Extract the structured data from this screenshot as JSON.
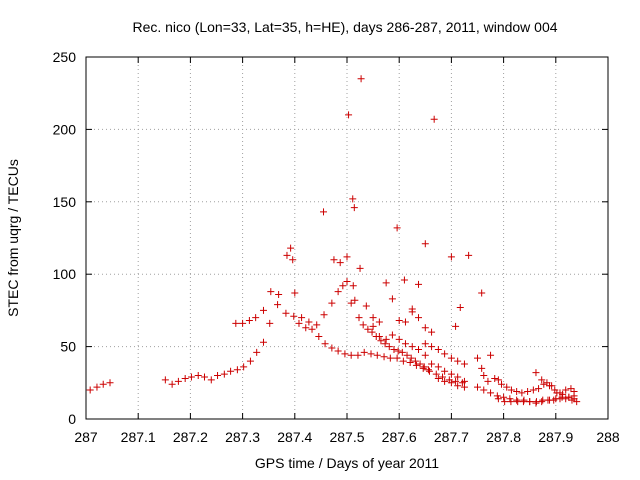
{
  "chart_data": {
    "type": "scatter",
    "title": "Rec. nico (Lon=33, Lat=35, h=HE), days 286-287, 2011, window 004",
    "xlabel": "GPS time / Days of year 2011",
    "ylabel": "STEC from uqrg / TECUs",
    "xlim": [
      287,
      288
    ],
    "ylim": [
      0,
      250
    ],
    "x_ticks": [
      287,
      287.1,
      287.2,
      287.3,
      287.4,
      287.5,
      287.6,
      287.7,
      287.8,
      287.9,
      288
    ],
    "x_tick_labels": [
      "287",
      "287.1",
      "287.2",
      "287.3",
      "287.4",
      "287.5",
      "287.6",
      "287.7",
      "287.8",
      "287.9",
      "288"
    ],
    "y_ticks": [
      0,
      50,
      100,
      150,
      200,
      250
    ],
    "y_tick_labels": [
      "0",
      "50",
      "100",
      "150",
      "200",
      "250"
    ],
    "grid": true,
    "marker": "+",
    "color": "#cc0000",
    "series": [
      {
        "name": "STEC",
        "points": [
          [
            287.008,
            20
          ],
          [
            287.021,
            22
          ],
          [
            287.033,
            24
          ],
          [
            287.046,
            25
          ],
          [
            287.152,
            27
          ],
          [
            287.165,
            24
          ],
          [
            287.177,
            26
          ],
          [
            287.19,
            28
          ],
          [
            287.202,
            29
          ],
          [
            287.215,
            30
          ],
          [
            287.227,
            29
          ],
          [
            287.24,
            27
          ],
          [
            287.252,
            30
          ],
          [
            287.265,
            31
          ],
          [
            287.277,
            33
          ],
          [
            287.29,
            34
          ],
          [
            287.302,
            36
          ],
          [
            287.315,
            40
          ],
          [
            287.327,
            46
          ],
          [
            287.34,
            53
          ],
          [
            287.287,
            66
          ],
          [
            287.3,
            66
          ],
          [
            287.313,
            68
          ],
          [
            287.325,
            70
          ],
          [
            287.34,
            75
          ],
          [
            287.354,
            88
          ],
          [
            287.369,
            86
          ],
          [
            287.385,
            113
          ],
          [
            287.392,
            118
          ],
          [
            287.396,
            110
          ],
          [
            287.4,
            87
          ],
          [
            287.408,
            66
          ],
          [
            287.421,
            63
          ],
          [
            287.433,
            62
          ],
          [
            287.446,
            57
          ],
          [
            287.458,
            52
          ],
          [
            287.471,
            49
          ],
          [
            287.483,
            47
          ],
          [
            287.496,
            45
          ],
          [
            287.508,
            44
          ],
          [
            287.521,
            44
          ],
          [
            287.533,
            46
          ],
          [
            287.546,
            45
          ],
          [
            287.558,
            44
          ],
          [
            287.571,
            43
          ],
          [
            287.583,
            42
          ],
          [
            287.596,
            42
          ],
          [
            287.608,
            40
          ],
          [
            287.621,
            39
          ],
          [
            287.633,
            37
          ],
          [
            287.646,
            35
          ],
          [
            287.658,
            33
          ],
          [
            287.671,
            31
          ],
          [
            287.683,
            29
          ],
          [
            287.696,
            27
          ],
          [
            287.708,
            26
          ],
          [
            287.721,
            25
          ],
          [
            287.352,
            66
          ],
          [
            287.367,
            79
          ],
          [
            287.383,
            73
          ],
          [
            287.398,
            71
          ],
          [
            287.413,
            70
          ],
          [
            287.427,
            67
          ],
          [
            287.442,
            65
          ],
          [
            287.456,
            72
          ],
          [
            287.471,
            80
          ],
          [
            287.483,
            88
          ],
          [
            287.492,
            92
          ],
          [
            287.5,
            95
          ],
          [
            287.508,
            80
          ],
          [
            287.515,
            82
          ],
          [
            287.523,
            70
          ],
          [
            287.531,
            65
          ],
          [
            287.54,
            62
          ],
          [
            287.548,
            60
          ],
          [
            287.556,
            57
          ],
          [
            287.565,
            54
          ],
          [
            287.573,
            52
          ],
          [
            287.581,
            50
          ],
          [
            287.59,
            48
          ],
          [
            287.598,
            47
          ],
          [
            287.606,
            46
          ],
          [
            287.615,
            44
          ],
          [
            287.623,
            42
          ],
          [
            287.631,
            40
          ],
          [
            287.64,
            38
          ],
          [
            287.648,
            36
          ],
          [
            287.656,
            34
          ],
          [
            287.487,
            108
          ],
          [
            287.5,
            112
          ],
          [
            287.512,
            92
          ],
          [
            287.525,
            104
          ],
          [
            287.537,
            78
          ],
          [
            287.55,
            64
          ],
          [
            287.562,
            57
          ],
          [
            287.575,
            55
          ],
          [
            287.587,
            58
          ],
          [
            287.6,
            55
          ],
          [
            287.612,
            52
          ],
          [
            287.625,
            50
          ],
          [
            287.637,
            48
          ],
          [
            287.65,
            44
          ],
          [
            287.662,
            38
          ],
          [
            287.675,
            36
          ],
          [
            287.687,
            33
          ],
          [
            287.7,
            31
          ],
          [
            287.712,
            29
          ],
          [
            287.725,
            26
          ],
          [
            287.455,
            143
          ],
          [
            287.475,
            110
          ],
          [
            287.503,
            210
          ],
          [
            287.511,
            152
          ],
          [
            287.514,
            146
          ],
          [
            287.527,
            235
          ],
          [
            287.596,
            132
          ],
          [
            287.61,
            96
          ],
          [
            287.625,
            76
          ],
          [
            287.637,
            93
          ],
          [
            287.65,
            121
          ],
          [
            287.667,
            207
          ],
          [
            287.7,
            112
          ],
          [
            287.733,
            113
          ],
          [
            287.717,
            77
          ],
          [
            287.708,
            64
          ],
          [
            287.758,
            87
          ],
          [
            287.65,
            52
          ],
          [
            287.662,
            50
          ],
          [
            287.675,
            48
          ],
          [
            287.687,
            45
          ],
          [
            287.7,
            42
          ],
          [
            287.712,
            40
          ],
          [
            287.725,
            38
          ],
          [
            287.55,
            70
          ],
          [
            287.562,
            67
          ],
          [
            287.575,
            94
          ],
          [
            287.587,
            83
          ],
          [
            287.6,
            68
          ],
          [
            287.612,
            67
          ],
          [
            287.625,
            74
          ],
          [
            287.637,
            70
          ],
          [
            287.65,
            63
          ],
          [
            287.662,
            60
          ],
          [
            287.675,
            28
          ],
          [
            287.687,
            26
          ],
          [
            287.7,
            25
          ],
          [
            287.712,
            23
          ],
          [
            287.725,
            22
          ],
          [
            287.75,
            42
          ],
          [
            287.758,
            35
          ],
          [
            287.762,
            30
          ],
          [
            287.77,
            26
          ],
          [
            287.775,
            44
          ],
          [
            287.783,
            28
          ],
          [
            287.79,
            27
          ],
          [
            287.796,
            24
          ],
          [
            287.806,
            22
          ],
          [
            287.815,
            20
          ],
          [
            287.825,
            19
          ],
          [
            287.835,
            18
          ],
          [
            287.846,
            19
          ],
          [
            287.857,
            20
          ],
          [
            287.867,
            21
          ],
          [
            287.877,
            24
          ],
          [
            287.888,
            23
          ],
          [
            287.898,
            20
          ],
          [
            287.908,
            18
          ],
          [
            287.919,
            20
          ],
          [
            287.929,
            21
          ],
          [
            287.935,
            19
          ],
          [
            287.75,
            22
          ],
          [
            287.762,
            20
          ],
          [
            287.775,
            18
          ],
          [
            287.788,
            16
          ],
          [
            287.8,
            15
          ],
          [
            287.812,
            14
          ],
          [
            287.825,
            13
          ],
          [
            287.838,
            12
          ],
          [
            287.85,
            12
          ],
          [
            287.863,
            12
          ],
          [
            287.875,
            13
          ],
          [
            287.888,
            13
          ],
          [
            287.9,
            14
          ],
          [
            287.912,
            15
          ],
          [
            287.925,
            15
          ],
          [
            287.935,
            14
          ],
          [
            287.862,
            32
          ],
          [
            287.873,
            27
          ],
          [
            287.883,
            25
          ],
          [
            287.892,
            23
          ],
          [
            287.902,
            18
          ],
          [
            287.913,
            17
          ],
          [
            287.925,
            15
          ],
          [
            287.935,
            16
          ],
          [
            287.79,
            14
          ],
          [
            287.802,
            12
          ],
          [
            287.814,
            12
          ],
          [
            287.827,
            12
          ],
          [
            287.839,
            13
          ],
          [
            287.85,
            12
          ],
          [
            287.862,
            11
          ],
          [
            287.873,
            12
          ],
          [
            287.885,
            13
          ],
          [
            287.896,
            13
          ],
          [
            287.908,
            14
          ],
          [
            287.919,
            14
          ],
          [
            287.931,
            13
          ],
          [
            287.94,
            12
          ]
        ]
      }
    ]
  }
}
